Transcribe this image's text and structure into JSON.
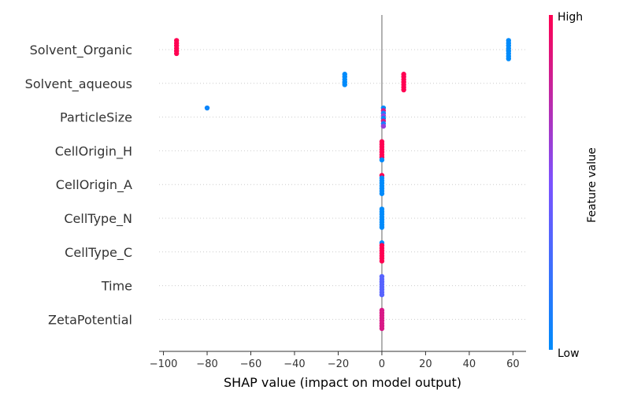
{
  "chart_data": {
    "type": "scatter",
    "subtype": "shap_beeswarm",
    "xlabel": "SHAP value (impact on model output)",
    "xlim": [
      -102,
      66
    ],
    "xticks": [
      -100,
      -80,
      -60,
      -40,
      -20,
      0,
      20,
      40,
      60
    ],
    "features": [
      {
        "name": "Solvent_Organic",
        "points": [
          {
            "x": -94,
            "count": 6,
            "v": 1.0
          },
          {
            "x": 58,
            "count": 8,
            "v": 0.0
          }
        ]
      },
      {
        "name": "Solvent_aqueous",
        "points": [
          {
            "x": -17,
            "count": 5,
            "v": 0.0
          },
          {
            "x": 10,
            "count": 7,
            "v": 1.0
          }
        ]
      },
      {
        "name": "ParticleSize",
        "points": [
          {
            "x": -80,
            "count": 1,
            "v": 0.05
          },
          {
            "x": 0.7,
            "count": 8,
            "v": 0.3,
            "mix": [
              0.0,
              0.85,
              0.1,
              0.6
            ]
          }
        ]
      },
      {
        "name": "CellOrigin_H",
        "points": [
          {
            "x": 0,
            "count": 7,
            "v": 1.0
          },
          {
            "x": 0,
            "count": 1,
            "v": 0.0,
            "slot": 7
          }
        ]
      },
      {
        "name": "CellOrigin_A",
        "points": [
          {
            "x": 0,
            "count": 8,
            "v": 0.0,
            "top": 1.0
          }
        ]
      },
      {
        "name": "CellType_N",
        "points": [
          {
            "x": 0,
            "count": 8,
            "v": 0.0
          }
        ]
      },
      {
        "name": "CellType_C",
        "points": [
          {
            "x": 0,
            "count": 8,
            "v": 1.0,
            "top": 0.0
          }
        ]
      },
      {
        "name": "Time",
        "points": [
          {
            "x": 0,
            "count": 8,
            "v": 0.35
          }
        ]
      },
      {
        "name": "ZetaPotential",
        "points": [
          {
            "x": 0,
            "count": 8,
            "v": 0.85
          }
        ]
      }
    ],
    "colorbar": {
      "label": "Feature value",
      "high_label": "High",
      "low_label": "Low",
      "low_color": "#008bfb",
      "high_color": "#ff0052"
    }
  }
}
